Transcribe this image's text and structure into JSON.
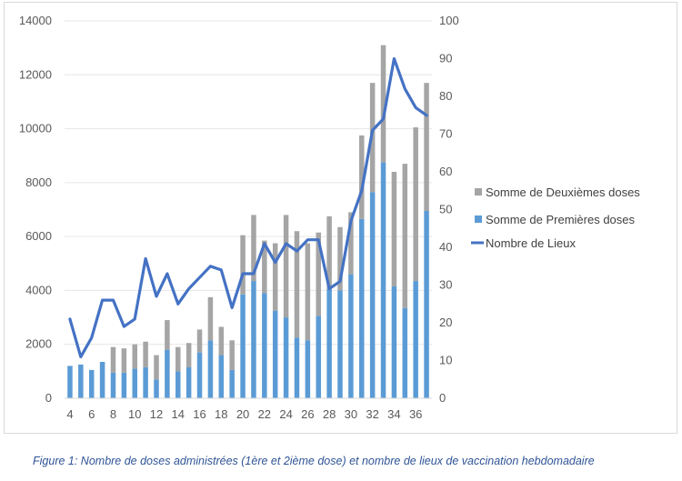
{
  "caption": "Figure 1: Nombre de doses administrées (1ère et 2ième dose) et nombre de lieux de vaccination hebdomadaire",
  "colors": {
    "premieres": "#5b9bd5",
    "deuxiemes": "#a5a5a5",
    "lieux": "#4472c4",
    "axis_text": "#595959",
    "caption": "#2f5496"
  },
  "chart_data": {
    "type": "bar",
    "stacked": true,
    "title": "",
    "x": [
      4,
      5,
      6,
      7,
      8,
      9,
      10,
      11,
      12,
      13,
      14,
      15,
      16,
      17,
      18,
      19,
      20,
      21,
      22,
      23,
      24,
      25,
      26,
      27,
      28,
      29,
      30,
      31,
      32,
      33,
      34,
      35,
      36,
      37
    ],
    "x_tick_labels": [
      "4",
      "6",
      "8",
      "10",
      "12",
      "14",
      "16",
      "18",
      "20",
      "22",
      "24",
      "26",
      "28",
      "30",
      "32",
      "34",
      "36"
    ],
    "ylim": [
      0,
      14000
    ],
    "y_ticks": [
      0,
      2000,
      4000,
      6000,
      8000,
      10000,
      12000,
      14000
    ],
    "y2lim": [
      0,
      100
    ],
    "y2_ticks": [
      0,
      10,
      20,
      30,
      40,
      50,
      60,
      70,
      80,
      90,
      100
    ],
    "grid": true,
    "legend_position": "right",
    "series": [
      {
        "name": "Somme de Deuxièmes doses",
        "type": "bar",
        "axis": "left",
        "values": [
          0,
          0,
          0,
          0,
          950,
          900,
          900,
          950,
          900,
          1100,
          900,
          900,
          850,
          1600,
          1050,
          1100,
          2200,
          2450,
          1950,
          2500,
          3800,
          3950,
          3600,
          3100,
          2700,
          2350,
          2300,
          3100,
          4050,
          4350,
          4250,
          5350,
          5700,
          4750
        ]
      },
      {
        "name": "Somme de Premières doses",
        "type": "bar",
        "axis": "left",
        "values": [
          1200,
          1250,
          1050,
          1350,
          950,
          950,
          1100,
          1150,
          700,
          1800,
          1000,
          1150,
          1700,
          2150,
          1600,
          1050,
          3850,
          4350,
          3900,
          3250,
          3000,
          2250,
          2150,
          3050,
          4050,
          4000,
          4600,
          6650,
          7650,
          8750,
          4150,
          3350,
          4350,
          6950
        ]
      },
      {
        "name": "Nombre de Lieux",
        "type": "line",
        "axis": "right",
        "values": [
          21,
          11,
          16,
          26,
          26,
          19,
          21,
          37,
          27,
          33,
          25,
          29,
          32,
          35,
          34,
          24,
          33,
          33,
          41,
          36,
          41,
          39,
          42,
          42,
          29,
          31,
          47,
          55,
          71,
          74,
          90,
          82,
          77,
          75
        ]
      }
    ]
  }
}
